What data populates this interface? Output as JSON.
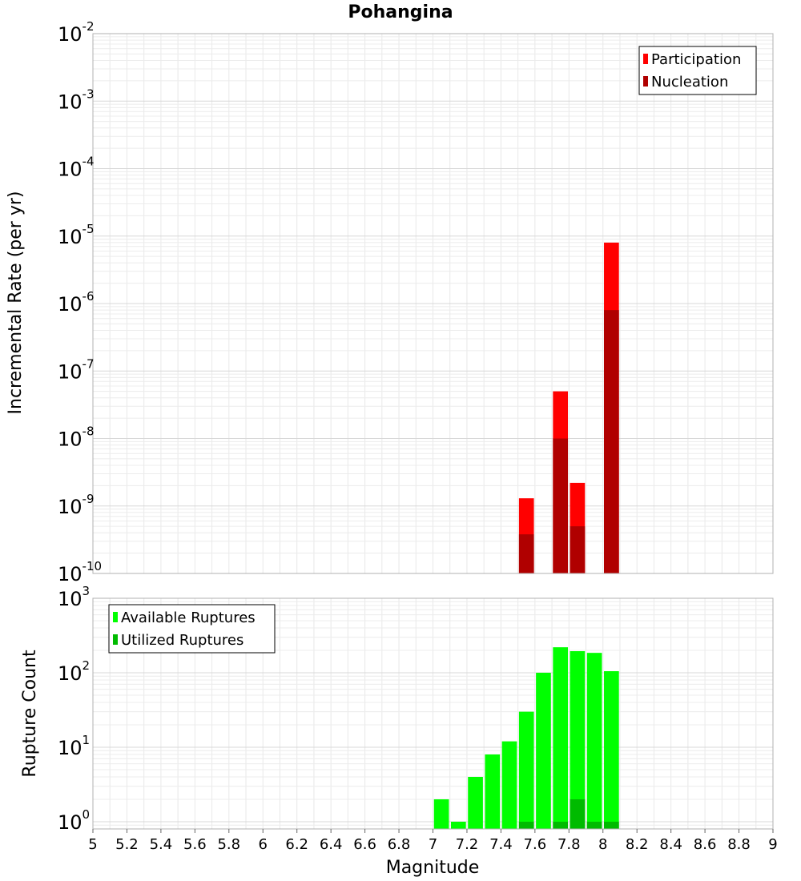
{
  "chart_data": [
    {
      "type": "bar",
      "title": "Pohangina",
      "ylabel": "Incremental Rate (per yr)",
      "xlabel": "",
      "yscale": "log",
      "ylim": [
        1e-10,
        0.01
      ],
      "xlim": [
        5,
        9
      ],
      "y_ticks": [
        {
          "base": "10",
          "exp": "-10"
        },
        {
          "base": "10",
          "exp": "-9"
        },
        {
          "base": "10",
          "exp": "-8"
        },
        {
          "base": "10",
          "exp": "-7"
        },
        {
          "base": "10",
          "exp": "-6"
        },
        {
          "base": "10",
          "exp": "-5"
        },
        {
          "base": "10",
          "exp": "-4"
        },
        {
          "base": "10",
          "exp": "-3"
        },
        {
          "base": "10",
          "exp": "-2"
        }
      ],
      "legend_position": "top-right",
      "grid": true,
      "series": [
        {
          "name": "Participation",
          "color": "#ff0000",
          "x": [
            7.55,
            7.75,
            7.85,
            8.05
          ],
          "values": [
            1.3e-09,
            5e-08,
            2.2e-09,
            8e-06
          ]
        },
        {
          "name": "Nucleation",
          "color": "#b00000",
          "x": [
            7.55,
            7.75,
            7.85,
            8.05
          ],
          "values": [
            3.8e-10,
            1e-08,
            5e-10,
            8e-07
          ]
        }
      ]
    },
    {
      "type": "bar",
      "ylabel": "Rupture Count",
      "xlabel": "Magnitude",
      "yscale": "log",
      "ylim": [
        0.8,
        1000
      ],
      "xlim": [
        5,
        9
      ],
      "x_ticks": [
        "5",
        "5.2",
        "5.4",
        "5.6",
        "5.8",
        "6",
        "6.2",
        "6.4",
        "6.6",
        "6.8",
        "7",
        "7.2",
        "7.4",
        "7.6",
        "7.8",
        "8",
        "8.2",
        "8.4",
        "8.6",
        "8.8",
        "9"
      ],
      "y_ticks": [
        {
          "base": "10",
          "exp": "0"
        },
        {
          "base": "10",
          "exp": "1"
        },
        {
          "base": "10",
          "exp": "2"
        },
        {
          "base": "10",
          "exp": "3"
        }
      ],
      "legend_position": "top-left",
      "grid": true,
      "series": [
        {
          "name": "Available Ruptures",
          "color": "#00ff00",
          "x": [
            7.05,
            7.15,
            7.25,
            7.35,
            7.45,
            7.55,
            7.65,
            7.75,
            7.85,
            7.95,
            8.05
          ],
          "values": [
            2,
            1,
            4,
            8,
            12,
            30,
            100,
            220,
            195,
            185,
            105
          ]
        },
        {
          "name": "Utilized Ruptures",
          "color": "#00bb00",
          "x": [
            7.55,
            7.75,
            7.85,
            7.95,
            8.05
          ],
          "values": [
            1,
            1,
            2,
            1,
            1
          ]
        }
      ]
    }
  ]
}
